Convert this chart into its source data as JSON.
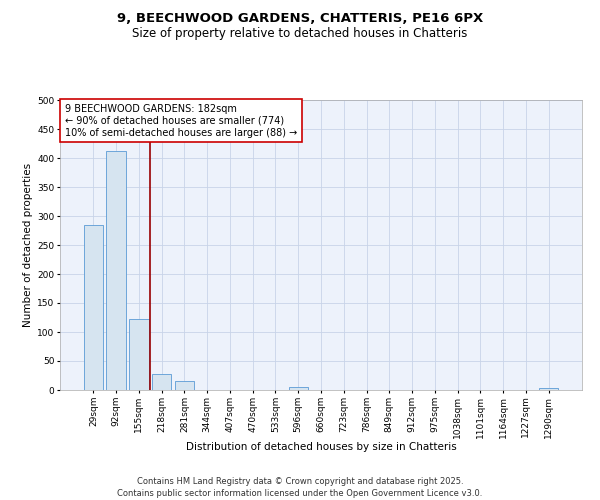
{
  "title_line1": "9, BEECHWOOD GARDENS, CHATTERIS, PE16 6PX",
  "title_line2": "Size of property relative to detached houses in Chatteris",
  "xlabel": "Distribution of detached houses by size in Chatteris",
  "ylabel": "Number of detached properties",
  "bar_labels": [
    "29sqm",
    "92sqm",
    "155sqm",
    "218sqm",
    "281sqm",
    "344sqm",
    "407sqm",
    "470sqm",
    "533sqm",
    "596sqm",
    "660sqm",
    "723sqm",
    "786sqm",
    "849sqm",
    "912sqm",
    "975sqm",
    "1038sqm",
    "1101sqm",
    "1164sqm",
    "1227sqm",
    "1290sqm"
  ],
  "bar_values": [
    285,
    412,
    123,
    28,
    15,
    0,
    0,
    0,
    0,
    5,
    0,
    0,
    0,
    0,
    0,
    0,
    0,
    0,
    0,
    0,
    3
  ],
  "bar_color": "#d6e4f0",
  "bar_edgecolor": "#5b9bd5",
  "vline_x": 2.5,
  "vline_color": "#990000",
  "annotation_text": "9 BEECHWOOD GARDENS: 182sqm\n← 90% of detached houses are smaller (774)\n10% of semi-detached houses are larger (88) →",
  "annotation_box_color": "#cc0000",
  "ylim": [
    0,
    500
  ],
  "yticks": [
    0,
    50,
    100,
    150,
    200,
    250,
    300,
    350,
    400,
    450,
    500
  ],
  "grid_color": "#c8d4e8",
  "bg_color": "#edf2fb",
  "footer_line1": "Contains HM Land Registry data © Crown copyright and database right 2025.",
  "footer_line2": "Contains public sector information licensed under the Open Government Licence v3.0.",
  "title_fontsize": 9.5,
  "subtitle_fontsize": 8.5,
  "axis_label_fontsize": 7.5,
  "tick_fontsize": 6.5,
  "annotation_fontsize": 7,
  "footer_fontsize": 6
}
